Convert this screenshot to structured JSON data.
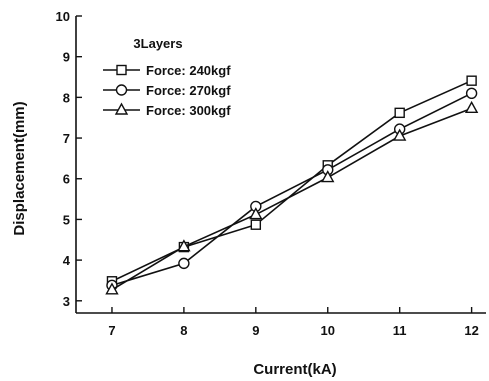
{
  "chart_data": {
    "type": "line",
    "xlabel": "Current(kA)",
    "ylabel": "Displacement(mm)",
    "xlim": [
      6.5,
      12.2
    ],
    "ylim": [
      2.7,
      10
    ],
    "xticks": [
      7,
      8,
      9,
      10,
      11,
      12
    ],
    "yticks": [
      3,
      4,
      5,
      6,
      7,
      8,
      9,
      10
    ],
    "x": [
      7,
      8,
      9,
      10,
      11,
      12
    ],
    "grid": false,
    "legend_title": "3Layers",
    "legend_position": "top-left",
    "series": [
      {
        "name": "Force: 240kgf",
        "marker": "square",
        "values": [
          3.48,
          4.32,
          4.87,
          6.33,
          7.62,
          8.41
        ]
      },
      {
        "name": "Force: 270kgf",
        "marker": "circle",
        "values": [
          3.38,
          3.92,
          5.32,
          6.22,
          7.22,
          8.1
        ]
      },
      {
        "name": "Force: 300kgf",
        "marker": "triangle",
        "values": [
          3.27,
          4.33,
          5.12,
          6.03,
          7.05,
          7.73
        ]
      }
    ]
  }
}
